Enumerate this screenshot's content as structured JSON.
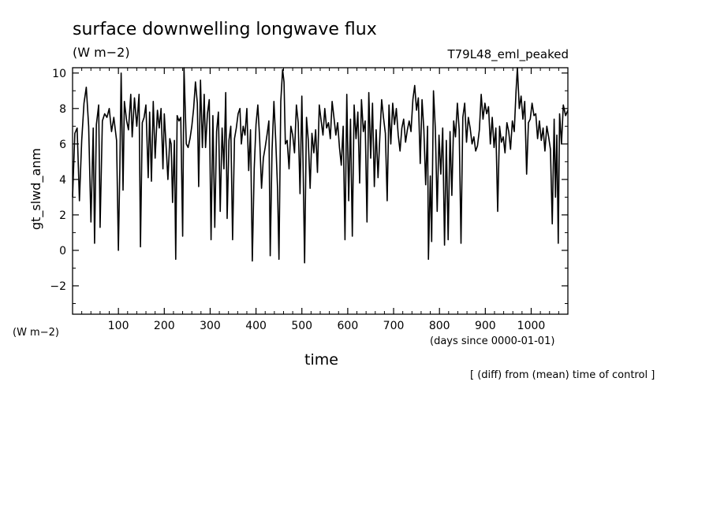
{
  "header": {
    "title": "surface downwelling longwave flux",
    "units": "(W m−2)",
    "experiment": "T79L48_eml_peaked"
  },
  "axes": {
    "ylabel": "gt_slwd_anm",
    "yunits": "(W m−2)",
    "xlabel": "time",
    "xunits": "(days since 0000-01-01)"
  },
  "note": "[ (diff) from (mean) time of control ]",
  "chart_data": {
    "type": "line",
    "title": "surface downwelling longwave flux",
    "xlabel": "time",
    "ylabel": "gt_slwd_anm",
    "xlim": [
      0,
      1080
    ],
    "ylim": [
      -3.6,
      10.3
    ],
    "xticks": [
      100,
      200,
      300,
      400,
      500,
      600,
      700,
      800,
      900,
      1000
    ],
    "yticks": [
      -2,
      0,
      2,
      4,
      6,
      8,
      10
    ],
    "grid": false,
    "series": [
      {
        "color": "#000000",
        "keypoints": [
          [
            0,
            3.0
          ],
          [
            5,
            6.6
          ],
          [
            10,
            6.9
          ],
          [
            15,
            2.8
          ],
          [
            20,
            6.2
          ],
          [
            25,
            8.3
          ],
          [
            30,
            9.2
          ],
          [
            35,
            7.0
          ],
          [
            40,
            1.6
          ],
          [
            45,
            6.9
          ],
          [
            48,
            0.4
          ],
          [
            52,
            7.1
          ],
          [
            57,
            8.2
          ],
          [
            60,
            1.3
          ],
          [
            65,
            7.3
          ],
          [
            70,
            7.7
          ],
          [
            75,
            7.5
          ],
          [
            80,
            8.0
          ],
          [
            85,
            6.7
          ],
          [
            90,
            7.5
          ],
          [
            96,
            6.2
          ],
          [
            100,
            0.0
          ],
          [
            103,
            4.5
          ],
          [
            106,
            10.0
          ],
          [
            110,
            3.4
          ],
          [
            113,
            8.4
          ],
          [
            118,
            7.3
          ],
          [
            122,
            6.8
          ],
          [
            127,
            8.8
          ],
          [
            130,
            6.4
          ],
          [
            135,
            8.6
          ],
          [
            140,
            7.0
          ],
          [
            145,
            8.8
          ],
          [
            148,
            0.2
          ],
          [
            152,
            7.2
          ],
          [
            156,
            7.5
          ],
          [
            160,
            8.2
          ],
          [
            165,
            4.1
          ],
          [
            168,
            7.8
          ],
          [
            172,
            3.9
          ],
          [
            176,
            8.4
          ],
          [
            180,
            5.2
          ],
          [
            185,
            7.9
          ],
          [
            189,
            6.9
          ],
          [
            193,
            8.0
          ],
          [
            197,
            4.6
          ],
          [
            200,
            7.7
          ],
          [
            205,
            5.4
          ],
          [
            208,
            4.0
          ],
          [
            212,
            6.3
          ],
          [
            215,
            6.0
          ],
          [
            218,
            2.7
          ],
          [
            222,
            6.2
          ],
          [
            225,
            -0.5
          ],
          [
            228,
            7.6
          ],
          [
            232,
            7.3
          ],
          [
            236,
            7.5
          ],
          [
            240,
            0.8
          ],
          [
            243,
            10.3
          ],
          [
            248,
            6.0
          ],
          [
            252,
            5.8
          ],
          [
            256,
            6.3
          ],
          [
            260,
            7.0
          ],
          [
            264,
            8.0
          ],
          [
            268,
            9.5
          ],
          [
            272,
            8.3
          ],
          [
            275,
            3.6
          ],
          [
            279,
            9.6
          ],
          [
            283,
            5.8
          ],
          [
            287,
            8.8
          ],
          [
            290,
            5.8
          ],
          [
            294,
            7.7
          ],
          [
            298,
            8.5
          ],
          [
            302,
            0.6
          ],
          [
            306,
            7.6
          ],
          [
            310,
            1.3
          ],
          [
            314,
            6.7
          ],
          [
            318,
            7.8
          ],
          [
            322,
            2.2
          ],
          [
            326,
            6.9
          ],
          [
            330,
            4.6
          ],
          [
            334,
            8.9
          ],
          [
            337,
            1.8
          ],
          [
            341,
            6.2
          ],
          [
            345,
            7.0
          ],
          [
            349,
            0.6
          ],
          [
            353,
            6.3
          ],
          [
            357,
            6.9
          ],
          [
            361,
            7.7
          ],
          [
            365,
            8.0
          ],
          [
            368,
            6.0
          ],
          [
            372,
            7.0
          ],
          [
            376,
            6.5
          ],
          [
            380,
            8.0
          ],
          [
            384,
            4.5
          ],
          [
            388,
            6.8
          ],
          [
            392,
            -0.6
          ],
          [
            396,
            4.6
          ],
          [
            400,
            7.1
          ],
          [
            404,
            8.2
          ],
          [
            408,
            6.3
          ],
          [
            412,
            3.5
          ],
          [
            416,
            5.2
          ],
          [
            420,
            5.8
          ],
          [
            424,
            6.5
          ],
          [
            428,
            7.3
          ],
          [
            431,
            -0.3
          ],
          [
            435,
            5.6
          ],
          [
            439,
            8.4
          ],
          [
            443,
            6.2
          ],
          [
            447,
            3.5
          ],
          [
            450,
            -0.5
          ],
          [
            454,
            8.4
          ],
          [
            458,
            10.2
          ],
          [
            461,
            9.5
          ],
          [
            464,
            6.0
          ],
          [
            468,
            6.2
          ],
          [
            472,
            4.6
          ],
          [
            476,
            7.0
          ],
          [
            480,
            6.5
          ],
          [
            484,
            5.5
          ],
          [
            488,
            8.2
          ],
          [
            492,
            7.2
          ],
          [
            496,
            3.2
          ],
          [
            500,
            8.7
          ],
          [
            503,
            4.2
          ],
          [
            506,
            -0.7
          ],
          [
            510,
            7.5
          ],
          [
            514,
            6.2
          ],
          [
            518,
            3.5
          ],
          [
            522,
            6.6
          ],
          [
            526,
            5.5
          ],
          [
            530,
            6.8
          ],
          [
            534,
            4.4
          ],
          [
            538,
            8.2
          ],
          [
            542,
            7.3
          ],
          [
            546,
            6.5
          ],
          [
            550,
            8.0
          ],
          [
            554,
            6.9
          ],
          [
            558,
            7.2
          ],
          [
            562,
            6.3
          ],
          [
            566,
            8.4
          ],
          [
            570,
            7.5
          ],
          [
            574,
            6.5
          ],
          [
            578,
            7.2
          ],
          [
            582,
            5.8
          ],
          [
            586,
            4.8
          ],
          [
            590,
            7.0
          ],
          [
            594,
            0.6
          ],
          [
            598,
            8.8
          ],
          [
            602,
            2.8
          ],
          [
            606,
            7.4
          ],
          [
            610,
            0.8
          ],
          [
            614,
            8.2
          ],
          [
            618,
            6.3
          ],
          [
            622,
            7.8
          ],
          [
            626,
            3.8
          ],
          [
            630,
            8.5
          ],
          [
            634,
            6.7
          ],
          [
            638,
            7.3
          ],
          [
            642,
            1.6
          ],
          [
            646,
            8.9
          ],
          [
            650,
            5.2
          ],
          [
            654,
            8.3
          ],
          [
            658,
            3.6
          ],
          [
            662,
            6.8
          ],
          [
            666,
            4.1
          ],
          [
            670,
            6.4
          ],
          [
            674,
            8.5
          ],
          [
            678,
            7.5
          ],
          [
            682,
            6.6
          ],
          [
            686,
            2.8
          ],
          [
            690,
            8.2
          ],
          [
            694,
            6.0
          ],
          [
            698,
            8.3
          ],
          [
            702,
            7.1
          ],
          [
            706,
            8.0
          ],
          [
            710,
            6.5
          ],
          [
            714,
            5.6
          ],
          [
            718,
            6.9
          ],
          [
            722,
            7.4
          ],
          [
            726,
            6.1
          ],
          [
            730,
            6.8
          ],
          [
            734,
            7.3
          ],
          [
            738,
            6.7
          ],
          [
            742,
            8.5
          ],
          [
            746,
            9.3
          ],
          [
            750,
            7.9
          ],
          [
            754,
            8.6
          ],
          [
            758,
            4.9
          ],
          [
            762,
            8.5
          ],
          [
            766,
            6.8
          ],
          [
            770,
            3.7
          ],
          [
            774,
            7.0
          ],
          [
            776,
            -0.5
          ],
          [
            780,
            4.2
          ],
          [
            783,
            0.5
          ],
          [
            787,
            9.0
          ],
          [
            791,
            6.8
          ],
          [
            795,
            2.2
          ],
          [
            799,
            6.5
          ],
          [
            803,
            4.3
          ],
          [
            807,
            6.9
          ],
          [
            811,
            0.3
          ],
          [
            815,
            6.2
          ],
          [
            819,
            0.6
          ],
          [
            823,
            6.7
          ],
          [
            827,
            3.1
          ],
          [
            831,
            7.3
          ],
          [
            835,
            6.4
          ],
          [
            839,
            8.3
          ],
          [
            843,
            6.8
          ],
          [
            847,
            0.4
          ],
          [
            851,
            7.5
          ],
          [
            855,
            8.3
          ],
          [
            859,
            6.1
          ],
          [
            863,
            7.5
          ],
          [
            867,
            6.9
          ],
          [
            871,
            6.0
          ],
          [
            875,
            6.4
          ],
          [
            879,
            5.6
          ],
          [
            883,
            5.9
          ],
          [
            887,
            6.8
          ],
          [
            891,
            8.8
          ],
          [
            895,
            7.4
          ],
          [
            899,
            8.3
          ],
          [
            903,
            7.7
          ],
          [
            907,
            8.1
          ],
          [
            911,
            6.0
          ],
          [
            915,
            7.5
          ],
          [
            919,
            5.8
          ],
          [
            923,
            6.9
          ],
          [
            927,
            2.2
          ],
          [
            931,
            7.0
          ],
          [
            935,
            6.1
          ],
          [
            939,
            6.4
          ],
          [
            943,
            5.5
          ],
          [
            947,
            7.2
          ],
          [
            951,
            6.7
          ],
          [
            955,
            5.7
          ],
          [
            959,
            7.3
          ],
          [
            963,
            6.7
          ],
          [
            967,
            9.0
          ],
          [
            970,
            10.3
          ],
          [
            974,
            8.0
          ],
          [
            978,
            8.7
          ],
          [
            982,
            7.4
          ],
          [
            986,
            8.4
          ],
          [
            990,
            4.3
          ],
          [
            994,
            7.2
          ],
          [
            998,
            7.4
          ],
          [
            1002,
            8.3
          ],
          [
            1006,
            7.6
          ],
          [
            1010,
            7.7
          ],
          [
            1014,
            6.3
          ],
          [
            1018,
            7.3
          ],
          [
            1022,
            6.2
          ],
          [
            1026,
            6.9
          ],
          [
            1030,
            5.6
          ],
          [
            1034,
            7.0
          ],
          [
            1038,
            6.4
          ],
          [
            1042,
            5.7
          ],
          [
            1046,
            1.5
          ],
          [
            1050,
            7.4
          ],
          [
            1053,
            3.0
          ],
          [
            1056,
            6.5
          ],
          [
            1059,
            0.4
          ],
          [
            1062,
            7.7
          ],
          [
            1066,
            6.0
          ],
          [
            1070,
            8.2
          ],
          [
            1075,
            7.6
          ],
          [
            1080,
            7.9
          ]
        ]
      }
    ]
  }
}
